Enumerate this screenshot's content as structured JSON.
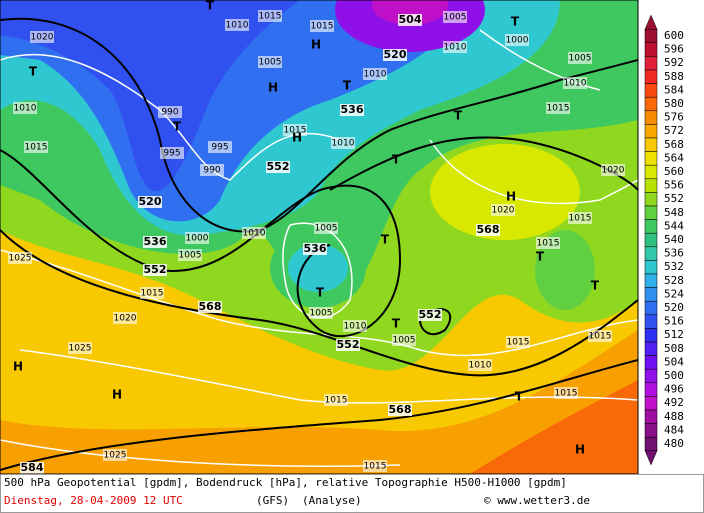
{
  "colorbar": {
    "labels": [
      600,
      596,
      592,
      588,
      584,
      580,
      576,
      572,
      568,
      564,
      560,
      556,
      552,
      548,
      544,
      540,
      536,
      532,
      528,
      524,
      520,
      516,
      512,
      508,
      504,
      500,
      496,
      492,
      488,
      484,
      480
    ],
    "colors": [
      "#9b1030",
      "#c01030",
      "#e0203a",
      "#f02a20",
      "#f84a10",
      "#f86a08",
      "#f88a00",
      "#f8a800",
      "#f8c800",
      "#f0e000",
      "#d8e800",
      "#b8e000",
      "#90d820",
      "#60d040",
      "#40c860",
      "#30c080",
      "#30c8a8",
      "#30c8d0",
      "#30b0e8",
      "#3090f0",
      "#3070f0",
      "#3050f0",
      "#3030f0",
      "#5020f0",
      "#7010f0",
      "#9010e8",
      "#b010e0",
      "#c010c8",
      "#a010a0",
      "#8a1088",
      "#701070"
    ]
  },
  "map": {
    "labels": [
      "504",
      "520",
      "536",
      "552",
      "520",
      "536",
      "552",
      "568",
      "536",
      "552",
      "552",
      "568",
      "568",
      "584",
      "1020",
      "1010",
      "1015",
      "1005",
      "1000",
      "1010",
      "1005",
      "1010",
      "1015",
      "1020",
      "1015",
      "1015",
      "1020",
      "990",
      "995",
      "990",
      "995",
      "1015",
      "1010",
      "1000",
      "1005",
      "1010",
      "1005",
      "1005",
      "1010",
      "1005",
      "1010",
      "1015",
      "1015",
      "1015",
      "1015",
      "1015",
      "1025",
      "1025",
      "1020",
      "1015",
      "1025",
      "1015",
      "1010",
      "1005",
      "1015",
      "1010",
      "T",
      "T",
      "T",
      "H",
      "T",
      "H",
      "T",
      "H",
      "T",
      "T",
      "H",
      "T",
      "T",
      "T",
      "T",
      "T",
      "H",
      "H",
      "T",
      "H"
    ]
  },
  "footer": {
    "caption": "500 hPa Geopotential [gpdm], Bodendruck [hPa], relative Topographie H500-H1000 [gpdm]",
    "date": "Dienstag, 28-04-2009  12 UTC",
    "model": "(GFS)",
    "run": "(Analyse)",
    "source": "© www.wetter3.de"
  }
}
